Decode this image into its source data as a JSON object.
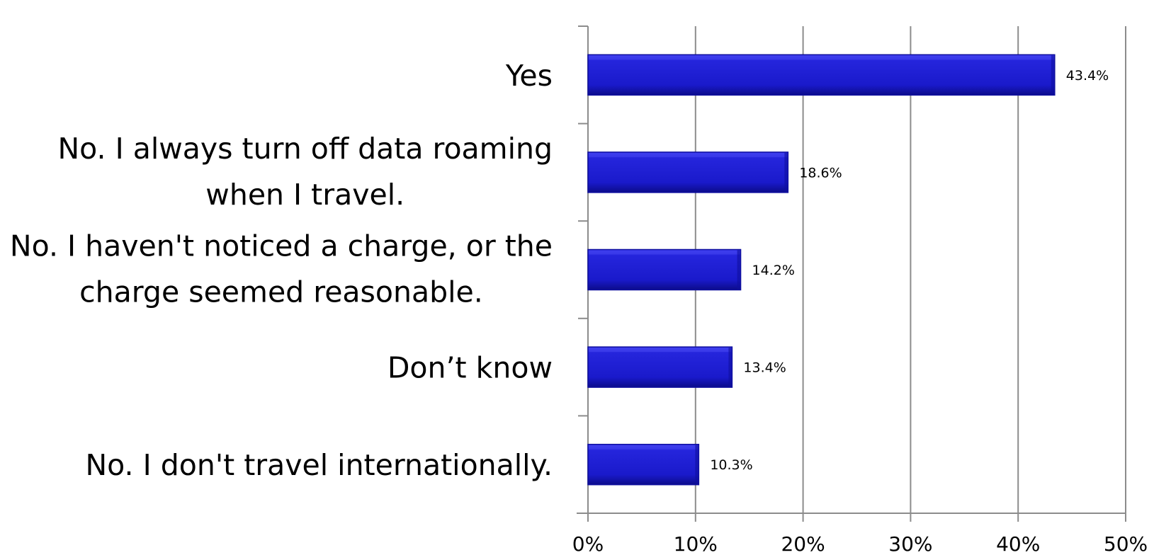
{
  "chart_data": {
    "type": "bar",
    "orientation": "horizontal",
    "categories": [
      "Yes",
      "No. I always turn off data roaming when I travel.",
      "No. I haven't noticed a charge, or the charge seemed reasonable.",
      "Don’t know",
      "No. I don't travel internationally."
    ],
    "category_lines": [
      [
        "Yes"
      ],
      [
        "No. I always turn off data roaming",
        "when I travel."
      ],
      [
        "No. I haven't noticed a charge, or the",
        "charge seemed reasonable."
      ],
      [
        "Don’t know"
      ],
      [
        "No. I don't travel internationally."
      ]
    ],
    "values": [
      43.4,
      18.6,
      14.2,
      13.4,
      10.3
    ],
    "data_labels": [
      "43.4%",
      "18.6%",
      "14.2%",
      "13.4%",
      "10.3%"
    ],
    "x_ticks": [
      "0%",
      "10%",
      "20%",
      "30%",
      "40%",
      "50%"
    ],
    "xlim": [
      0,
      50
    ],
    "grid": "vertical",
    "colors": {
      "bar": "#1f1fd6",
      "bar_dark": "#0f0f9e",
      "bar_light": "#4545ee",
      "grid": "#8c8c8c",
      "axis": "#8c8c8c"
    }
  }
}
